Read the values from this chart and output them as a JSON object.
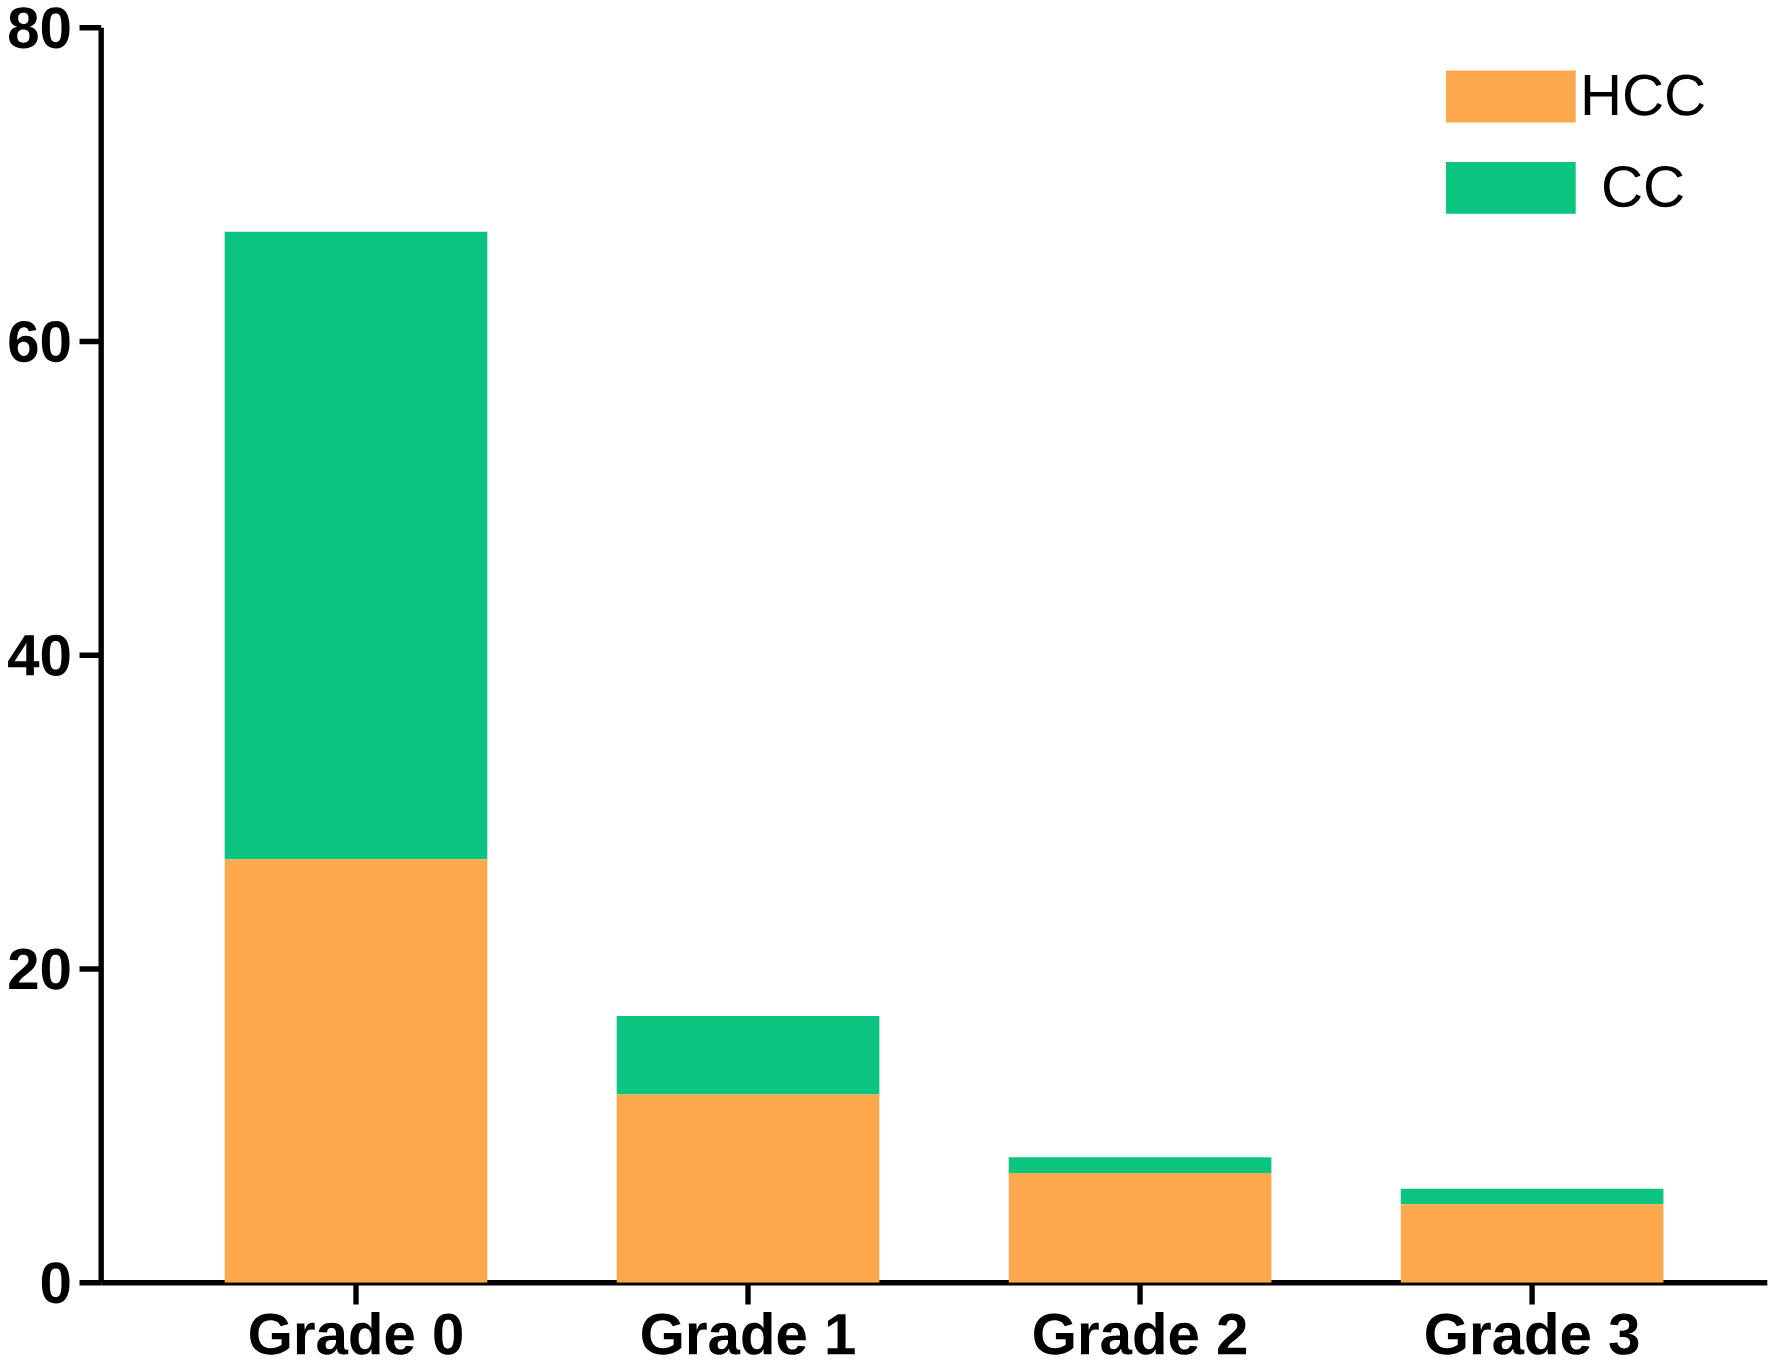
{
  "chart_data": {
    "type": "bar",
    "stacked": true,
    "categories": [
      "Grade 0",
      "Grade 1",
      "Grade 2",
      "Grade 3"
    ],
    "series": [
      {
        "name": "HCC",
        "color": "#fba94c",
        "values": [
          27,
          12,
          7,
          5
        ]
      },
      {
        "name": "CC",
        "color": "#0ac47f",
        "values": [
          40,
          5,
          1,
          1
        ]
      }
    ],
    "ylim": [
      0,
      80
    ],
    "yticks": [
      0,
      20,
      40,
      60,
      80
    ],
    "legend": "top right",
    "grid": false
  }
}
